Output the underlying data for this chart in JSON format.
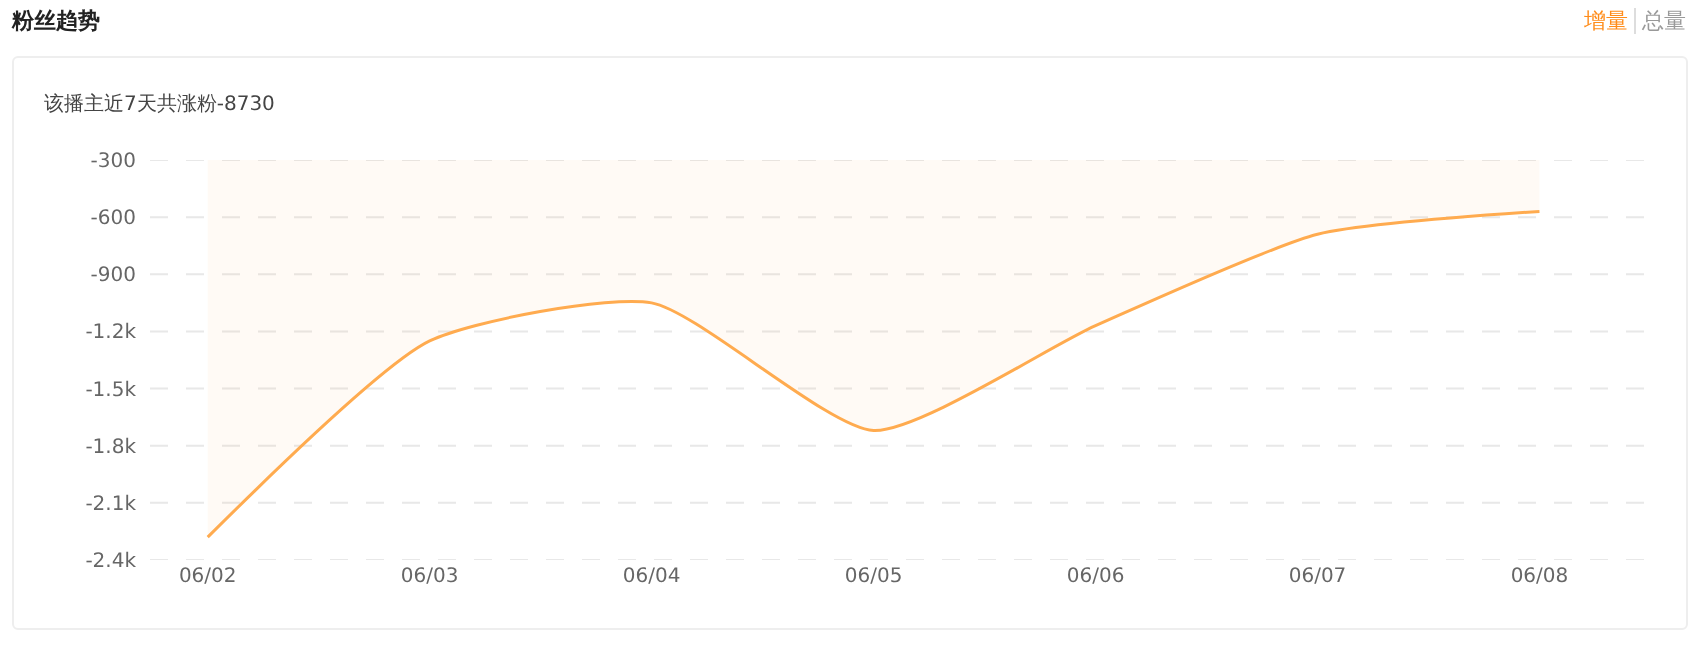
{
  "chart_data": {
    "type": "area",
    "title": "粉丝趋势",
    "subtitle": "该播主近7天共涨粉-8730",
    "annotations": [
      "增量",
      "总量"
    ],
    "categories": [
      "06/02",
      "06/03",
      "06/04",
      "06/05",
      "06/06",
      "06/07",
      "06/08"
    ],
    "series": [
      {
        "color": "#ffab4f",
        "values": [
          -2280,
          -1250,
          -1050,
          -1720,
          -1170,
          -690,
          -570
        ]
      }
    ],
    "ylim": [
      -2400,
      -300
    ],
    "yticks": [
      {
        "value": -300,
        "label": "-300"
      },
      {
        "value": -600,
        "label": "-600"
      },
      {
        "value": -900,
        "label": "-900"
      },
      {
        "value": -1200,
        "label": "-1.2k"
      },
      {
        "value": -1500,
        "label": "-1.5k"
      },
      {
        "value": -1800,
        "label": "-1.8k"
      },
      {
        "value": -2100,
        "label": "-2.1k"
      },
      {
        "value": -2400,
        "label": "-2.4k"
      }
    ],
    "grid": "y",
    "marker": "none",
    "line_style": "solid"
  }
}
